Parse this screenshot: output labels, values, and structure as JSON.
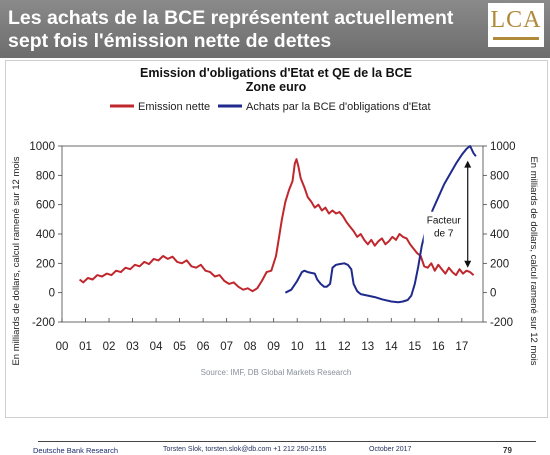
{
  "header": {
    "headline_line1": "Les achats de la BCE représentent actuellement",
    "headline_line2": "sept fois l'émission nette de dettes",
    "logo_text": "LCA"
  },
  "chart_data": {
    "type": "line",
    "title": "Emission d'obligations d'Etat et QE de la BCE",
    "subtitle": "Zone euro",
    "ylabel_left": "En milliards de dollars, calcul ramené sur 12 mois",
    "ylabel_right": "En milliards de dollars, calcul ramené sur 12 mois",
    "xlim": [
      2000,
      2017.9
    ],
    "ylim": [
      -200,
      1000
    ],
    "x_ticks": [
      2000,
      2001,
      2002,
      2003,
      2004,
      2005,
      2006,
      2007,
      2008,
      2009,
      2010,
      2011,
      2012,
      2013,
      2014,
      2015,
      2016,
      2017
    ],
    "x_tick_labels": [
      "00",
      "01",
      "02",
      "03",
      "04",
      "05",
      "06",
      "07",
      "08",
      "09",
      "10",
      "11",
      "12",
      "13",
      "14",
      "15",
      "16",
      "17"
    ],
    "y_ticks": [
      -200,
      0,
      200,
      400,
      600,
      800,
      1000
    ],
    "y_tick_labels_left": [
      "-200",
      "0",
      "200",
      "400",
      "600",
      "800",
      "1000"
    ],
    "y_tick_labels_right": [
      "-200",
      "0",
      "200",
      "400",
      "600",
      "800",
      "1000"
    ],
    "grid": false,
    "legend_position": "top",
    "annotation": {
      "text_line1": "Facteur",
      "text_line2": "de 7",
      "x": 2017.25,
      "y_from": 170,
      "y_to": 900
    },
    "series": [
      {
        "name": "Emission nette",
        "color": "#c0272d",
        "points": [
          [
            2000.75,
            90
          ],
          [
            2000.9,
            70
          ],
          [
            2001.1,
            100
          ],
          [
            2001.3,
            90
          ],
          [
            2001.5,
            120
          ],
          [
            2001.7,
            110
          ],
          [
            2001.9,
            130
          ],
          [
            2002.1,
            120
          ],
          [
            2002.3,
            150
          ],
          [
            2002.5,
            140
          ],
          [
            2002.7,
            170
          ],
          [
            2002.9,
            160
          ],
          [
            2003.1,
            190
          ],
          [
            2003.3,
            180
          ],
          [
            2003.5,
            210
          ],
          [
            2003.7,
            195
          ],
          [
            2003.9,
            230
          ],
          [
            2004.1,
            220
          ],
          [
            2004.3,
            250
          ],
          [
            2004.5,
            230
          ],
          [
            2004.7,
            245
          ],
          [
            2004.9,
            210
          ],
          [
            2005.1,
            200
          ],
          [
            2005.3,
            220
          ],
          [
            2005.5,
            180
          ],
          [
            2005.7,
            170
          ],
          [
            2005.9,
            190
          ],
          [
            2006.1,
            150
          ],
          [
            2006.3,
            140
          ],
          [
            2006.5,
            110
          ],
          [
            2006.7,
            120
          ],
          [
            2006.9,
            80
          ],
          [
            2007.1,
            60
          ],
          [
            2007.3,
            70
          ],
          [
            2007.5,
            40
          ],
          [
            2007.7,
            20
          ],
          [
            2007.9,
            30
          ],
          [
            2008.1,
            10
          ],
          [
            2008.3,
            30
          ],
          [
            2008.5,
            80
          ],
          [
            2008.7,
            140
          ],
          [
            2008.9,
            150
          ],
          [
            2009.1,
            250
          ],
          [
            2009.2,
            350
          ],
          [
            2009.35,
            500
          ],
          [
            2009.5,
            620
          ],
          [
            2009.65,
            700
          ],
          [
            2009.8,
            760
          ],
          [
            2009.9,
            880
          ],
          [
            2009.97,
            910
          ],
          [
            2010.05,
            860
          ],
          [
            2010.15,
            780
          ],
          [
            2010.3,
            720
          ],
          [
            2010.45,
            650
          ],
          [
            2010.6,
            620
          ],
          [
            2010.75,
            580
          ],
          [
            2010.9,
            600
          ],
          [
            2011.05,
            560
          ],
          [
            2011.2,
            580
          ],
          [
            2011.35,
            540
          ],
          [
            2011.5,
            560
          ],
          [
            2011.65,
            540
          ],
          [
            2011.8,
            550
          ],
          [
            2011.95,
            520
          ],
          [
            2012.1,
            480
          ],
          [
            2012.25,
            450
          ],
          [
            2012.4,
            420
          ],
          [
            2012.55,
            380
          ],
          [
            2012.7,
            400
          ],
          [
            2012.85,
            360
          ],
          [
            2013.0,
            330
          ],
          [
            2013.15,
            360
          ],
          [
            2013.3,
            320
          ],
          [
            2013.45,
            350
          ],
          [
            2013.6,
            370
          ],
          [
            2013.75,
            330
          ],
          [
            2013.9,
            350
          ],
          [
            2014.05,
            380
          ],
          [
            2014.2,
            360
          ],
          [
            2014.35,
            400
          ],
          [
            2014.5,
            380
          ],
          [
            2014.65,
            370
          ],
          [
            2014.8,
            330
          ],
          [
            2014.95,
            300
          ],
          [
            2015.1,
            270
          ],
          [
            2015.25,
            250
          ],
          [
            2015.4,
            180
          ],
          [
            2015.55,
            170
          ],
          [
            2015.7,
            200
          ],
          [
            2015.85,
            150
          ],
          [
            2016.0,
            190
          ],
          [
            2016.15,
            160
          ],
          [
            2016.3,
            130
          ],
          [
            2016.45,
            170
          ],
          [
            2016.6,
            140
          ],
          [
            2016.75,
            120
          ],
          [
            2016.9,
            160
          ],
          [
            2017.05,
            130
          ],
          [
            2017.2,
            150
          ],
          [
            2017.35,
            140
          ],
          [
            2017.5,
            120
          ]
        ]
      },
      {
        "name": "Achats par la BCE d'obligations d'Etat",
        "color": "#1f2a8c",
        "points": [
          [
            2009.5,
            0
          ],
          [
            2009.75,
            20
          ],
          [
            2010.0,
            80
          ],
          [
            2010.2,
            140
          ],
          [
            2010.3,
            150
          ],
          [
            2010.45,
            140
          ],
          [
            2010.6,
            135
          ],
          [
            2010.75,
            130
          ],
          [
            2010.85,
            90
          ],
          [
            2011.0,
            60
          ],
          [
            2011.15,
            40
          ],
          [
            2011.25,
            40
          ],
          [
            2011.4,
            60
          ],
          [
            2011.5,
            170
          ],
          [
            2011.65,
            190
          ],
          [
            2011.8,
            195
          ],
          [
            2012.0,
            200
          ],
          [
            2012.15,
            190
          ],
          [
            2012.3,
            160
          ],
          [
            2012.4,
            60
          ],
          [
            2012.55,
            10
          ],
          [
            2012.7,
            -10
          ],
          [
            2013.0,
            -20
          ],
          [
            2013.3,
            -30
          ],
          [
            2013.6,
            -45
          ],
          [
            2014.0,
            -60
          ],
          [
            2014.3,
            -65
          ],
          [
            2014.5,
            -60
          ],
          [
            2014.7,
            -50
          ],
          [
            2014.85,
            -20
          ],
          [
            2015.0,
            60
          ],
          [
            2015.15,
            180
          ],
          [
            2015.3,
            320
          ],
          [
            2015.45,
            420
          ],
          [
            2015.6,
            460
          ],
          [
            2015.75,
            560
          ],
          [
            2016.0,
            650
          ],
          [
            2016.25,
            740
          ],
          [
            2016.5,
            810
          ],
          [
            2016.75,
            880
          ],
          [
            2017.0,
            940
          ],
          [
            2017.2,
            980
          ],
          [
            2017.35,
            1000
          ],
          [
            2017.5,
            950
          ],
          [
            2017.6,
            930
          ]
        ]
      }
    ]
  },
  "source": "Source: IMF, DB Global Markets Research",
  "footer": {
    "brand": "Deutsche Bank Research",
    "contact": "Torsten Slok, torsten.slok@db.com  +1 212 250-2155",
    "date": "October 2017",
    "page_number": "79"
  }
}
